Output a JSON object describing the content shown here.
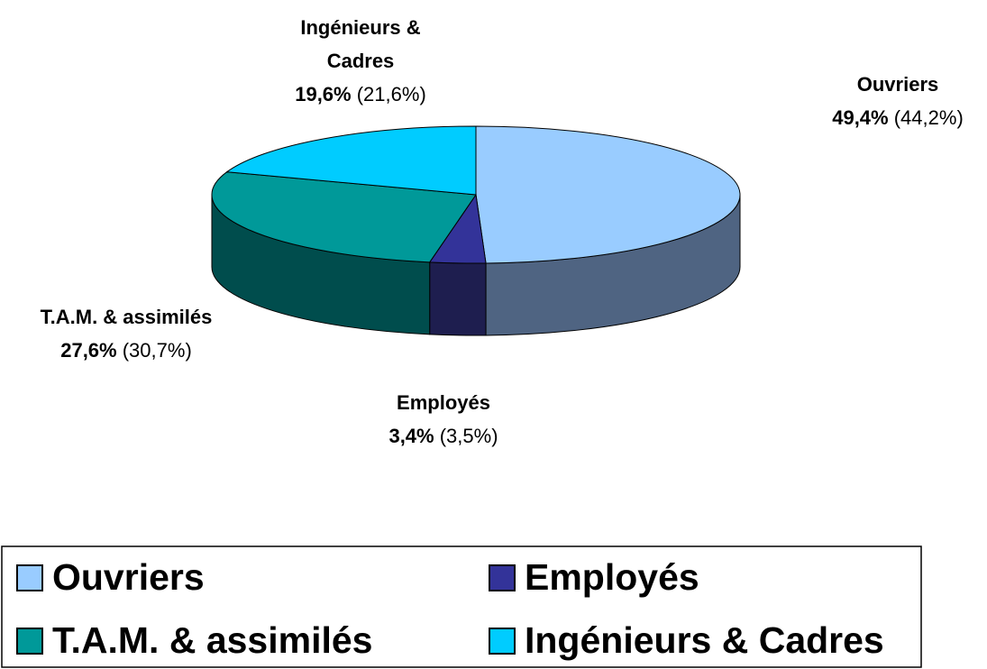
{
  "chart_data": {
    "type": "pie3d",
    "categories": [
      "Ouvriers",
      "Employés",
      "T.A.M. & assimilés",
      "Ingénieurs & Cadres"
    ],
    "values": [
      49.4,
      3.4,
      27.6,
      19.6
    ],
    "value_labels": [
      "49,4%",
      "3,4%",
      "27,6%",
      "19,6%"
    ],
    "secondary_values": [
      44.2,
      3.5,
      30.7,
      21.6
    ],
    "secondary_value_labels": [
      "(44,2%)",
      "(3,5%)",
      "(30,7%)",
      "(21,6%)"
    ],
    "colors": [
      "#99ccff",
      "#333399",
      "#009999",
      "#00ccff"
    ],
    "side_colors": [
      "#4f6482",
      "#1e1e4f",
      "#004d4d",
      "#007a99"
    ],
    "legend": true
  }
}
